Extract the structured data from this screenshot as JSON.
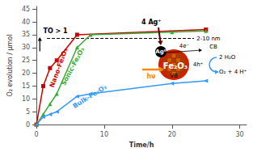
{
  "chart_data": {
    "type": "line",
    "xlabel": "Time/h",
    "ylabel": "O₂ evolution / µmol",
    "series": [
      {
        "name": "Nano-Fe₂O₃",
        "color": "#cc0000",
        "marker": "square",
        "x": [
          0,
          1,
          2,
          3,
          6,
          25
        ],
        "values": [
          0,
          15,
          22,
          25,
          35,
          37
        ]
      },
      {
        "name": "Sonic-Fe₂O₃",
        "color": "#33aa33",
        "marker": "triangle",
        "x": [
          0,
          1,
          2,
          3,
          6,
          8,
          20,
          25
        ],
        "values": [
          0,
          4,
          8,
          12,
          30,
          35,
          36,
          36.5
        ]
      },
      {
        "name": "Bulk-Fe₂O₃",
        "color": "#3399ff",
        "marker": "triangle-left",
        "x": [
          0,
          1,
          2,
          3,
          6,
          8,
          20,
          25
        ],
        "values": [
          0,
          3,
          4,
          5,
          11,
          12,
          16,
          17
        ]
      }
    ],
    "xlim": [
      0,
      31
    ],
    "ylim": [
      0,
      46
    ],
    "xticks": [
      0,
      10,
      20,
      30
    ],
    "yticks": [
      0,
      5,
      10,
      15,
      20,
      25,
      30,
      35,
      40,
      45
    ],
    "grid": false,
    "reference_line": {
      "y": 33.5,
      "line_style": "dashed",
      "color": "#000000"
    },
    "annotations": [
      {
        "text": "TO > 1"
      },
      {
        "text": "4 Ag⁺"
      },
      {
        "text": "Ag⁰"
      },
      {
        "text": "Fe₂O₃"
      },
      {
        "text": "CB"
      },
      {
        "text": "VB"
      },
      {
        "text": "2-10 nm"
      },
      {
        "text": "4e⁻"
      },
      {
        "text": "4h⁺"
      },
      {
        "text": "hν",
        "color": "#ff8800"
      },
      {
        "text": "2 H₂O"
      },
      {
        "text": "O₂ + 4 H⁺"
      }
    ]
  }
}
